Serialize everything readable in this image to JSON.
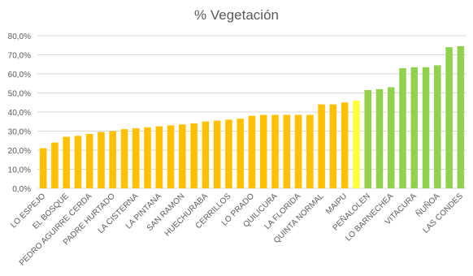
{
  "chart_data": {
    "type": "bar",
    "title": "% Vegetación",
    "categories": [
      "LO ESPEJO",
      null,
      "EL BOSQUE",
      null,
      "PEDRO AGUIRRE CERDA",
      null,
      "PADRE HURTADO",
      null,
      "LA CISTERNA",
      null,
      "LA PINTANA",
      null,
      "SAN RAMON",
      null,
      "HUECHURABA",
      null,
      "CERRILLOS",
      null,
      "LO PRADO",
      null,
      "QUILICURA",
      null,
      "LA FLORIDA",
      null,
      "QUINTA NORMAL",
      null,
      "MAIPU",
      null,
      "PEÑALOLEN",
      null,
      "LO BARNECHEA",
      null,
      "VITACURA",
      null,
      "ÑUÑOA",
      null,
      "LAS CONDES"
    ],
    "values": [
      21,
      24,
      27,
      27.5,
      28.5,
      29.5,
      30,
      31,
      31.5,
      32,
      32.5,
      33,
      33.5,
      34,
      35,
      35.5,
      36,
      36.5,
      38,
      38.5,
      38.5,
      38.5,
      38.5,
      38.5,
      44,
      44,
      45,
      46,
      51.5,
      52,
      53,
      63,
      63.5,
      63.5,
      64.5,
      74,
      74.5
    ],
    "colors": [
      "#ffc000",
      "#ffc000",
      "#ffc000",
      "#ffc000",
      "#ffc000",
      "#ffc000",
      "#ffc000",
      "#ffc000",
      "#ffc000",
      "#ffc000",
      "#ffc000",
      "#ffc000",
      "#ffc000",
      "#ffc000",
      "#ffc000",
      "#ffc000",
      "#ffc000",
      "#ffc000",
      "#ffc000",
      "#ffc000",
      "#ffc000",
      "#ffc000",
      "#ffc000",
      "#ffc000",
      "#ffc000",
      "#ffc000",
      "#ffc000",
      "#ffff40",
      "#92d050",
      "#92d050",
      "#92d050",
      "#92d050",
      "#92d050",
      "#92d050",
      "#92d050",
      "#92d050",
      "#92d050"
    ],
    "ylim": [
      0,
      80
    ],
    "yticks": [
      {
        "value": 0,
        "label": "0,0%"
      },
      {
        "value": 10,
        "label": "10,0%"
      },
      {
        "value": 20,
        "label": "20,0%"
      },
      {
        "value": 30,
        "label": "30,0%"
      },
      {
        "value": 40,
        "label": "40,0%"
      },
      {
        "value": 50,
        "label": "50,0%"
      },
      {
        "value": 60,
        "label": "60,0%"
      },
      {
        "value": 70,
        "label": "70,0%"
      },
      {
        "value": 80,
        "label": "80,0%"
      }
    ],
    "grid": true
  }
}
